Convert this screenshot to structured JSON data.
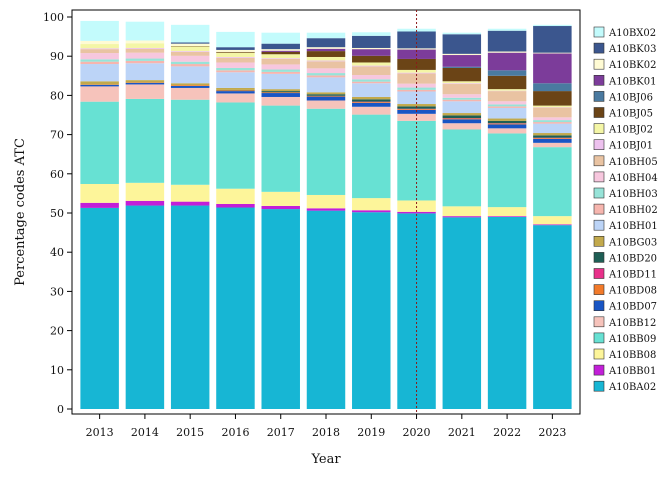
{
  "chart_data": {
    "type": "bar",
    "stacked": true,
    "title": "",
    "xlabel": "Year",
    "ylabel": "Percentage codes ATC",
    "ylim": [
      0,
      100
    ],
    "yticks": [
      0,
      10,
      20,
      30,
      40,
      50,
      60,
      70,
      80,
      90,
      100
    ],
    "legend_position": "right",
    "reference_line": {
      "x": "2020",
      "style": "dotted",
      "color": "#8b1a1a"
    },
    "categories": [
      "2013",
      "2014",
      "2015",
      "2016",
      "2017",
      "2018",
      "2019",
      "2020",
      "2021",
      "2022",
      "2023"
    ],
    "series": [
      {
        "name": "A10BA02",
        "color": "#17b6d4",
        "values": [
          51.3,
          51.9,
          51.9,
          51.4,
          51.0,
          50.6,
          50.2,
          49.9,
          48.9,
          49.0,
          46.9
        ]
      },
      {
        "name": "A10BB01",
        "color": "#c21fd8",
        "values": [
          1.3,
          1.2,
          1.0,
          0.9,
          0.8,
          0.6,
          0.5,
          0.4,
          0.3,
          0.2,
          0.2
        ]
      },
      {
        "name": "A10BB08",
        "color": "#fdf59a",
        "values": [
          4.8,
          4.6,
          4.3,
          3.9,
          3.6,
          3.4,
          3.1,
          2.9,
          2.5,
          2.3,
          2.1
        ]
      },
      {
        "name": "A10BB09",
        "color": "#67e1d3",
        "values": [
          21.0,
          21.4,
          21.7,
          22.0,
          22.0,
          22.0,
          21.3,
          20.3,
          19.6,
          18.8,
          17.6
        ]
      },
      {
        "name": "A10BB12",
        "color": "#f6c3bb",
        "values": [
          3.9,
          3.7,
          3.0,
          2.3,
          2.2,
          2.1,
          2.0,
          1.8,
          1.6,
          1.3,
          1.1
        ]
      },
      {
        "name": "A10BD07",
        "color": "#1855c4",
        "values": [
          0.4,
          0.4,
          0.5,
          0.6,
          1.0,
          1.0,
          1.0,
          1.0,
          1.0,
          1.0,
          1.0
        ]
      },
      {
        "name": "A10BD08",
        "color": "#f27a2a",
        "values": [
          0.1,
          0.1,
          0.2,
          0.2,
          0.2,
          0.2,
          0.2,
          0.2,
          0.2,
          0.2,
          0.2
        ]
      },
      {
        "name": "A10BD11",
        "color": "#e8308a",
        "values": [
          0.0,
          0.0,
          0.0,
          0.0,
          0.0,
          0.0,
          0.1,
          0.1,
          0.1,
          0.1,
          0.1
        ]
      },
      {
        "name": "A10BD20",
        "color": "#1e5e55",
        "values": [
          0.0,
          0.0,
          0.0,
          0.1,
          0.3,
          0.4,
          0.6,
          0.6,
          0.7,
          0.6,
          0.6
        ]
      },
      {
        "name": "A10BG03",
        "color": "#c2a94c",
        "values": [
          0.8,
          0.6,
          0.5,
          0.5,
          0.5,
          0.5,
          0.6,
          0.6,
          0.6,
          0.6,
          0.6
        ]
      },
      {
        "name": "A10BH01",
        "color": "#bcd4f7",
        "values": [
          4.4,
          4.3,
          4.3,
          4.0,
          3.9,
          3.8,
          3.5,
          3.2,
          3.0,
          2.7,
          2.4
        ]
      },
      {
        "name": "A10BH02",
        "color": "#f6b5ae",
        "values": [
          0.6,
          0.6,
          0.6,
          0.5,
          0.5,
          0.5,
          0.4,
          0.4,
          0.4,
          0.4,
          0.4
        ]
      },
      {
        "name": "A10BH03",
        "color": "#97e3d8",
        "values": [
          0.6,
          0.6,
          0.6,
          0.6,
          0.6,
          0.6,
          0.6,
          0.6,
          0.5,
          0.5,
          0.5
        ]
      },
      {
        "name": "A10BH04",
        "color": "#f7c7de",
        "values": [
          1.6,
          1.5,
          1.5,
          1.4,
          1.3,
          1.2,
          1.1,
          1.0,
          0.9,
          0.8,
          0.7
        ]
      },
      {
        "name": "A10BH05",
        "color": "#e9c3a2",
        "values": [
          1.0,
          1.0,
          1.0,
          1.2,
          1.4,
          1.8,
          2.2,
          2.6,
          2.6,
          2.6,
          2.5
        ]
      },
      {
        "name": "A10BJ01",
        "color": "#edc1ee",
        "values": [
          0.2,
          0.2,
          0.2,
          0.2,
          0.2,
          0.2,
          0.2,
          0.2,
          0.2,
          0.1,
          0.1
        ]
      },
      {
        "name": "A10BJ02",
        "color": "#f4f6a6",
        "values": [
          1.1,
          1.2,
          1.2,
          1.1,
          1.0,
          0.9,
          0.8,
          0.7,
          0.5,
          0.4,
          0.4
        ]
      },
      {
        "name": "A10BJ05",
        "color": "#6b4416",
        "values": [
          0.0,
          0.0,
          0.1,
          0.2,
          0.6,
          1.5,
          1.7,
          2.8,
          3.4,
          3.4,
          3.7
        ]
      },
      {
        "name": "A10BJ06",
        "color": "#4a7aa0",
        "values": [
          0.0,
          0.0,
          0.0,
          0.0,
          0.0,
          0.0,
          0.0,
          0.0,
          0.3,
          1.4,
          2.0
        ]
      },
      {
        "name": "A10BK01",
        "color": "#7c3c9a",
        "values": [
          0.0,
          0.0,
          0.0,
          0.0,
          0.3,
          0.6,
          1.7,
          2.4,
          3.0,
          4.5,
          7.6
        ]
      },
      {
        "name": "A10BK02",
        "color": "#fffbd4",
        "values": [
          0.8,
          0.7,
          0.6,
          0.5,
          0.4,
          0.4,
          0.3,
          0.3,
          0.3,
          0.3,
          0.2
        ]
      },
      {
        "name": "A10BK03",
        "color": "#3b568e",
        "values": [
          0.0,
          0.0,
          0.3,
          0.7,
          1.4,
          2.3,
          3.1,
          4.3,
          5.0,
          5.3,
          6.8
        ]
      },
      {
        "name": "A10BX02",
        "color": "#c3fbfc",
        "values": [
          5.1,
          4.8,
          4.5,
          3.9,
          2.8,
          1.4,
          0.9,
          0.7,
          0.4,
          0.5,
          0.3
        ]
      }
    ]
  }
}
